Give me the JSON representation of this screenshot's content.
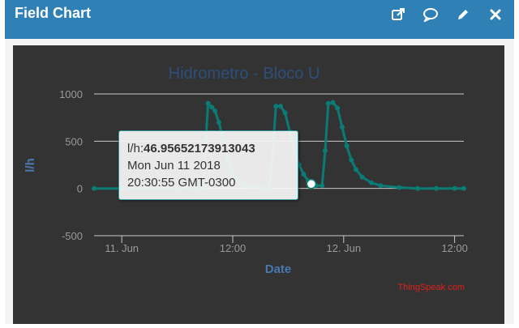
{
  "window": {
    "title": "Field Chart",
    "icons": [
      "external-link-icon",
      "comment-icon",
      "pencil-icon",
      "close-icon"
    ]
  },
  "colors": {
    "header": "#2f80b5",
    "chart_bg": "#333333",
    "series": "#0b7b76",
    "title": "#2e4e7a",
    "axis_label": "#4a78b0",
    "credits": "#e0201a"
  },
  "chart_data": {
    "type": "line",
    "title": "Hidrometro - Bloco U",
    "xlabel": "Date",
    "ylabel": "l/h",
    "ylim": [
      -500,
      1000
    ],
    "yticks": [
      -500,
      0,
      500,
      1000
    ],
    "xlim": [
      "2018-06-10 21:00",
      "2018-06-12 13:00"
    ],
    "xticks": [
      {
        "t": "2018-06-11 00:00",
        "label": "11. Jun"
      },
      {
        "t": "2018-06-11 12:00",
        "label": "12:00"
      },
      {
        "t": "2018-06-12 00:00",
        "label": "12. Jun"
      },
      {
        "t": "2018-06-12 12:00",
        "label": "12:00"
      }
    ],
    "grid": true,
    "series": [
      {
        "points": [
          [
            "2018-06-10 21:00",
            0
          ],
          [
            "2018-06-11 00:00",
            0
          ],
          [
            "2018-06-11 06:00",
            0
          ],
          [
            "2018-06-11 08:00",
            0
          ],
          [
            "2018-06-11 08:50",
            0
          ],
          [
            "2018-06-11 09:05",
            500
          ],
          [
            "2018-06-11 09:20",
            900
          ],
          [
            "2018-06-11 09:45",
            860
          ],
          [
            "2018-06-11 10:05",
            820
          ],
          [
            "2018-06-11 10:30",
            700
          ],
          [
            "2018-06-11 11:00",
            500
          ],
          [
            "2018-06-11 11:30",
            300
          ],
          [
            "2018-06-11 12:00",
            150
          ],
          [
            "2018-06-11 12:40",
            70
          ],
          [
            "2018-06-11 13:20",
            40
          ],
          [
            "2018-06-11 14:00",
            20
          ],
          [
            "2018-06-11 15:30",
            0
          ],
          [
            "2018-06-11 16:00",
            0
          ],
          [
            "2018-06-11 16:20",
            400
          ],
          [
            "2018-06-11 16:40",
            870
          ],
          [
            "2018-06-11 17:10",
            870
          ],
          [
            "2018-06-11 17:40",
            800
          ],
          [
            "2018-06-11 18:10",
            600
          ],
          [
            "2018-06-11 18:40",
            400
          ],
          [
            "2018-06-11 19:10",
            250
          ],
          [
            "2018-06-11 19:40",
            150
          ],
          [
            "2018-06-11 20:10",
            80
          ],
          [
            "2018-06-11 20:30",
            47
          ],
          [
            "2018-06-11 21:00",
            30
          ],
          [
            "2018-06-11 21:40",
            30
          ],
          [
            "2018-06-11 22:00",
            400
          ],
          [
            "2018-06-11 22:20",
            900
          ],
          [
            "2018-06-11 22:50",
            910
          ],
          [
            "2018-06-11 23:20",
            850
          ],
          [
            "2018-06-11 23:50",
            650
          ],
          [
            "2018-06-12 00:20",
            450
          ],
          [
            "2018-06-12 00:50",
            300
          ],
          [
            "2018-06-12 01:20",
            200
          ],
          [
            "2018-06-12 02:00",
            120
          ],
          [
            "2018-06-12 03:00",
            60
          ],
          [
            "2018-06-12 04:00",
            30
          ],
          [
            "2018-06-12 06:00",
            10
          ],
          [
            "2018-06-12 08:00",
            0
          ],
          [
            "2018-06-12 10:00",
            0
          ],
          [
            "2018-06-12 12:00",
            0
          ],
          [
            "2018-06-12 13:00",
            0
          ]
        ]
      }
    ],
    "tooltip": {
      "label": "l/h:",
      "value": "46.95652173913043",
      "date": "Mon Jun 11 2018",
      "time": "20:30:55 GMT-0300",
      "point": [
        "2018-06-11 20:30",
        47
      ]
    },
    "credits": "ThingSpeak.com"
  }
}
